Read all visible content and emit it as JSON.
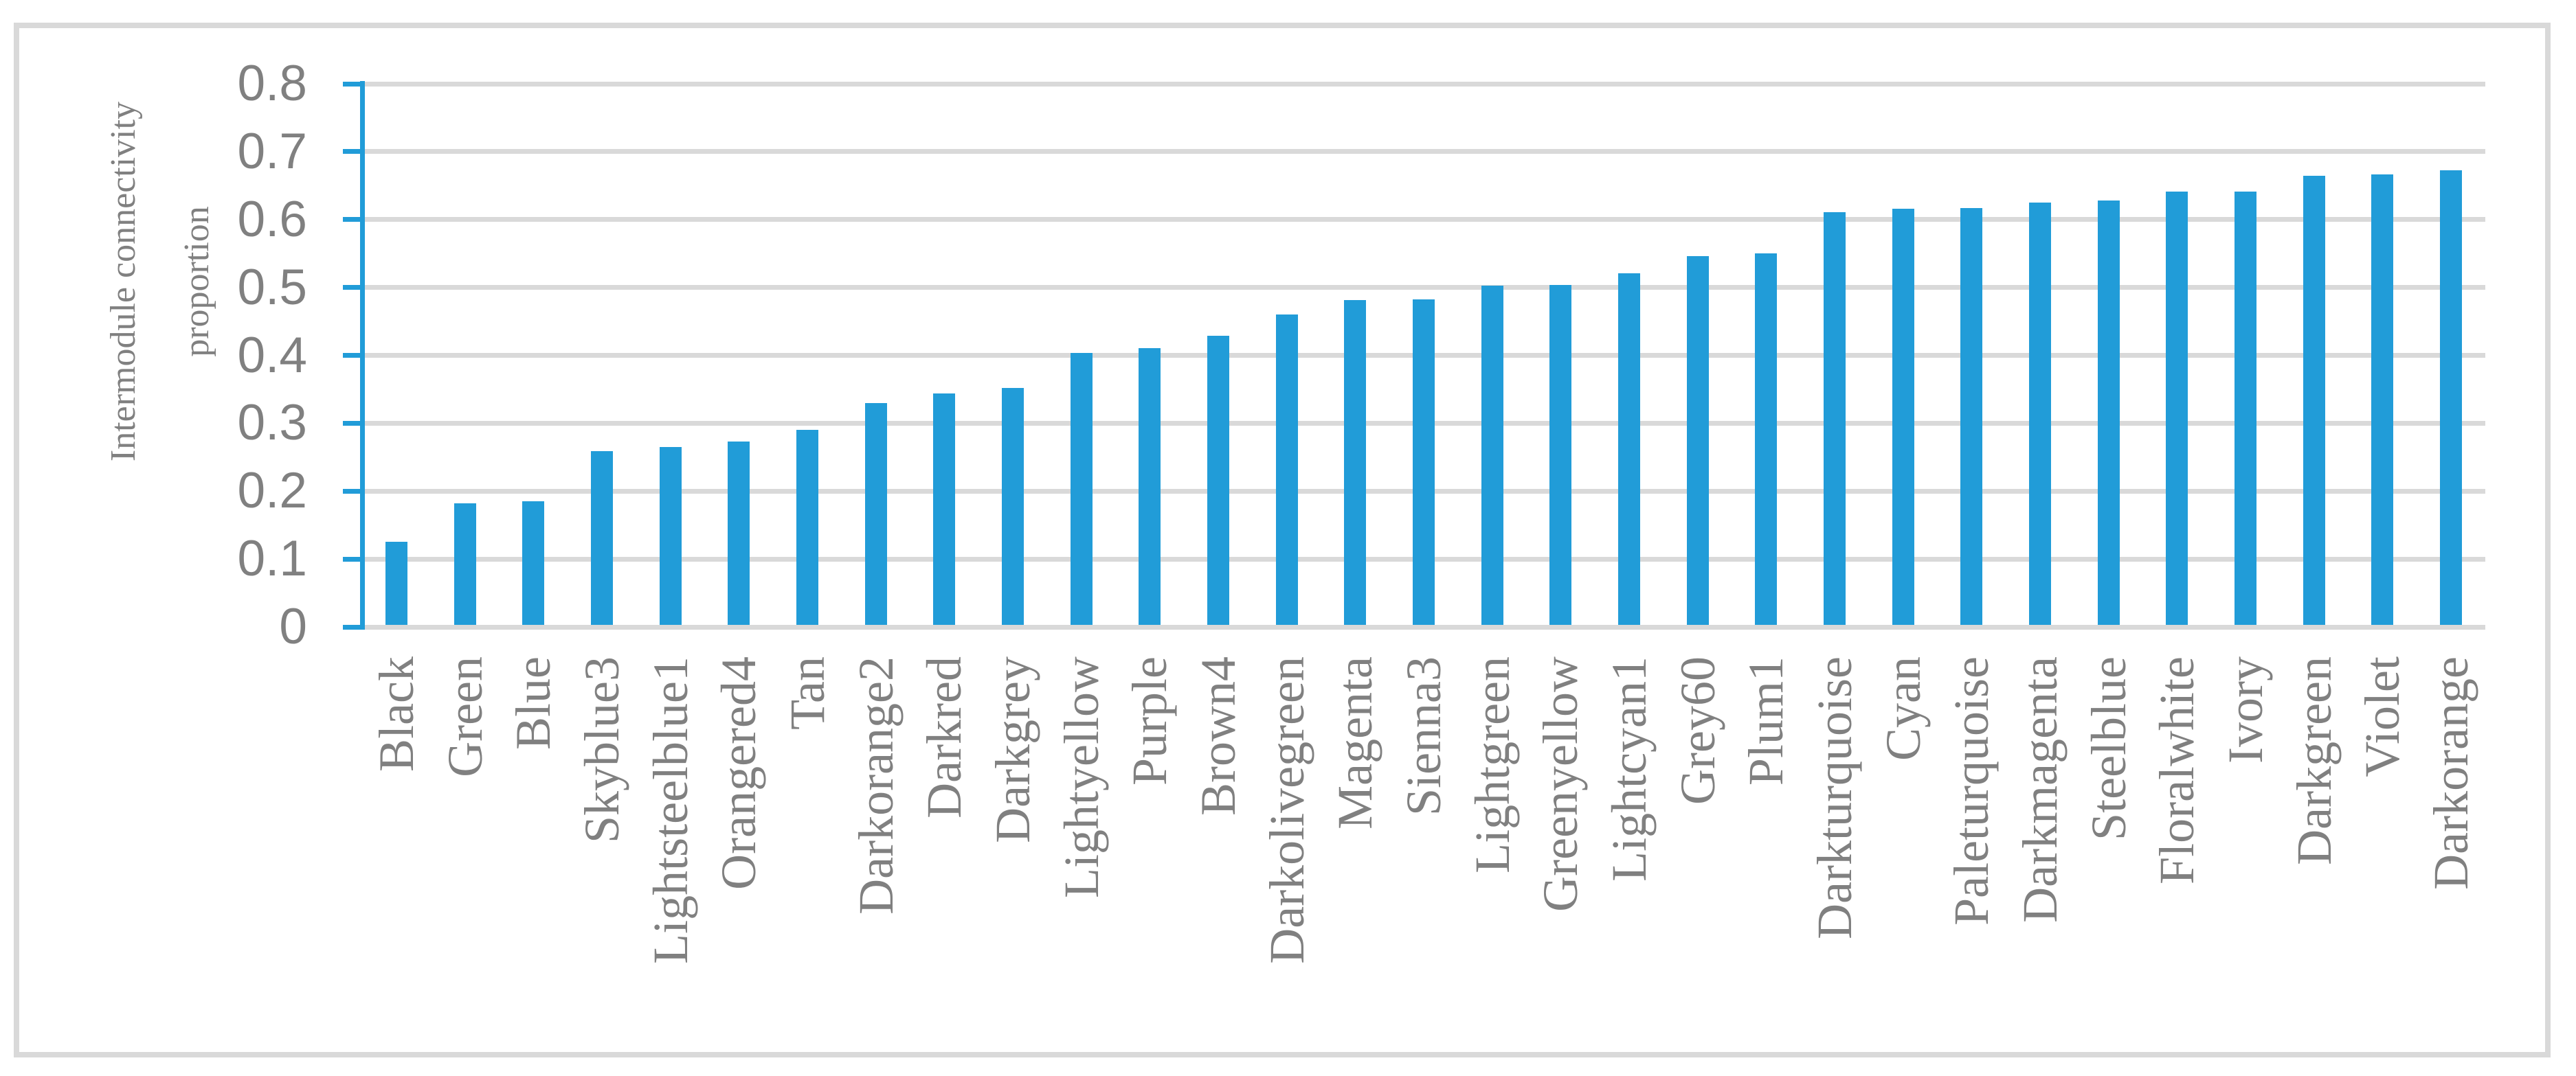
{
  "chart_data": {
    "type": "bar",
    "title": "",
    "categories": [
      "Black",
      "Green",
      "Blue",
      "Skyblue3",
      "Lightsteelblue1",
      "Orangered4",
      "Tan",
      "Darkorange2",
      "Darkred",
      "Darkgrey",
      "Lightyellow",
      "Purple",
      "Brown4",
      "Darkolivegreen",
      "Magenta",
      "Sienna3",
      "Lightgreen",
      "Greenyellow",
      "Lightcyan1",
      "Grey60",
      "Plum1",
      "Darkturquoise",
      "Cyan",
      "Paleturquoise",
      "Darkmagenta",
      "Steelblue",
      "Floralwhite",
      "Ivory",
      "Darkgreen",
      "Violet",
      "Darkorange"
    ],
    "values": [
      0.125,
      0.182,
      0.185,
      0.259,
      0.265,
      0.273,
      0.29,
      0.33,
      0.344,
      0.352,
      0.404,
      0.411,
      0.429,
      0.46,
      0.481,
      0.482,
      0.503,
      0.504,
      0.521,
      0.546,
      0.55,
      0.611,
      0.616,
      0.617,
      0.625,
      0.628,
      0.641,
      0.641,
      0.664,
      0.667,
      0.673
    ],
    "xlabel": "",
    "ylabel": "Intermodule connectivity proportion",
    "ylabel_lines": [
      "Intermodule connectivity",
      "proportion"
    ],
    "ytick_labels": [
      "0",
      "0.1",
      "0.2",
      "0.3",
      "0.4",
      "0.5",
      "0.6",
      "0.7",
      "0.8"
    ],
    "yticks": [
      0,
      0.1,
      0.2,
      0.3,
      0.4,
      0.5,
      0.6,
      0.7,
      0.8
    ],
    "ylim": [
      0,
      0.8
    ],
    "grid": "horizontal",
    "legend_position": "none",
    "bar_color": "#219CD8",
    "axis_color": "#219CD8",
    "gridline_color": "#D9D9D9",
    "frame_border_color": "#D9D9D9",
    "text_color": "#808080"
  }
}
